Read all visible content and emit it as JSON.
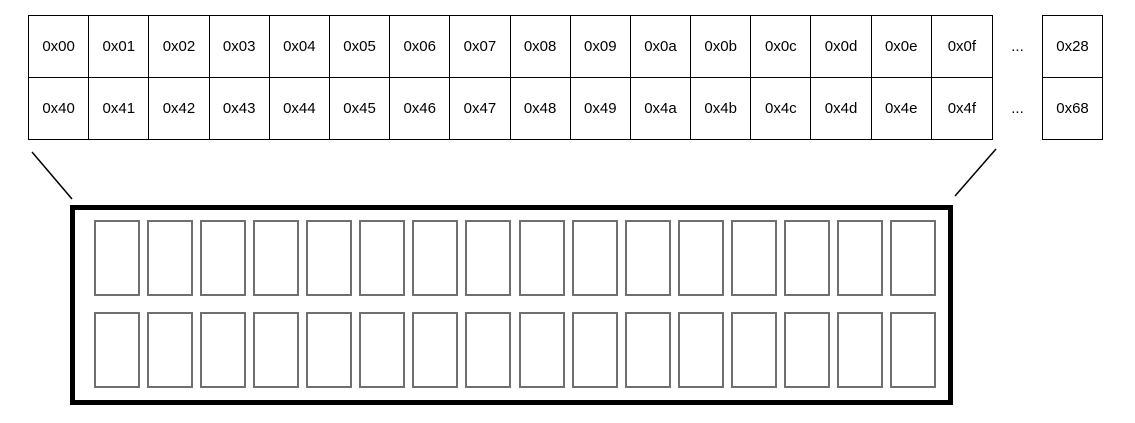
{
  "address_table": {
    "rows": [
      {
        "cells": [
          "0x00",
          "0x01",
          "0x02",
          "0x03",
          "0x04",
          "0x05",
          "0x06",
          "0x07",
          "0x08",
          "0x09",
          "0x0a",
          "0x0b",
          "0x0c",
          "0x0d",
          "0x0e",
          "0x0f"
        ],
        "ellipsis": "...",
        "tail": "0x28"
      },
      {
        "cells": [
          "0x40",
          "0x41",
          "0x42",
          "0x43",
          "0x44",
          "0x45",
          "0x46",
          "0x47",
          "0x48",
          "0x49",
          "0x4a",
          "0x4b",
          "0x4c",
          "0x4d",
          "0x4e",
          "0x4f"
        ],
        "ellipsis": "...",
        "tail": "0x68"
      }
    ]
  },
  "detail_box": {
    "rows": 2,
    "slots_per_row": 16
  },
  "colors": {
    "line": "#000000",
    "table_border": "#000000",
    "slot_border": "#6f6f6f",
    "background": "#ffffff",
    "text": "#000000"
  }
}
